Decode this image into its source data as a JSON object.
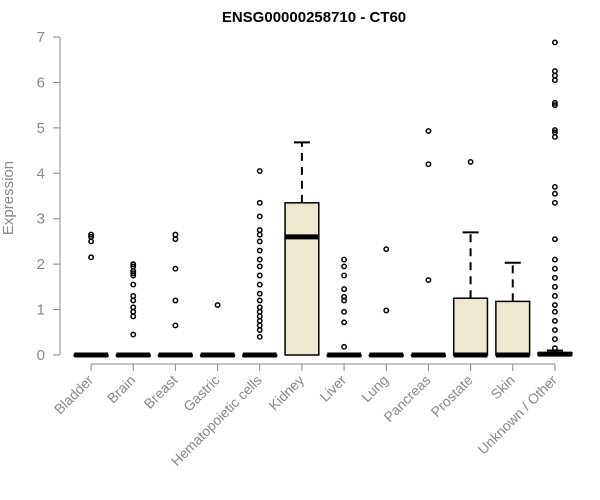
{
  "chart_data": {
    "type": "box",
    "title": "ENSG00000258710 - CT60",
    "xlabel": "",
    "ylabel": "Expression",
    "ylim": [
      0,
      7
    ],
    "yticks": [
      0,
      1,
      2,
      3,
      4,
      5,
      6,
      7
    ],
    "grid": false,
    "colors": {
      "box_fill": "#ede8d0",
      "box_stroke": "#000000",
      "axis": "#888888"
    },
    "categories": [
      "Bladder",
      "Brain",
      "Breast",
      "Gastric",
      "Hematopoietic cells",
      "Kidney",
      "Liver",
      "Lung",
      "Pancreas",
      "Prostate",
      "Skin",
      "Unknown / Other"
    ],
    "boxes": [
      {
        "category": "Bladder",
        "q1": 0,
        "median": 0,
        "q3": 0,
        "whisker_low": 0,
        "whisker_high": 0,
        "outliers": [
          2.15,
          2.5,
          2.6,
          2.65
        ]
      },
      {
        "category": "Brain",
        "q1": 0,
        "median": 0,
        "q3": 0,
        "whisker_low": 0,
        "whisker_high": 0,
        "outliers": [
          0.45,
          0.85,
          0.95,
          1.05,
          1.2,
          1.3,
          1.55,
          1.75,
          1.8,
          1.85,
          1.95,
          2.0
        ]
      },
      {
        "category": "Breast",
        "q1": 0,
        "median": 0,
        "q3": 0,
        "whisker_low": 0,
        "whisker_high": 0,
        "outliers": [
          0.65,
          1.2,
          1.9,
          2.55,
          2.65
        ]
      },
      {
        "category": "Gastric",
        "q1": 0,
        "median": 0,
        "q3": 0,
        "whisker_low": 0,
        "whisker_high": 0,
        "outliers": [
          1.1
        ]
      },
      {
        "category": "Hematopoietic cells",
        "q1": 0,
        "median": 0,
        "q3": 0,
        "whisker_low": 0,
        "whisker_high": 0,
        "outliers": [
          0.4,
          0.55,
          0.65,
          0.75,
          0.85,
          0.95,
          1.05,
          1.2,
          1.35,
          1.55,
          1.75,
          1.95,
          2.1,
          2.3,
          2.5,
          2.65,
          2.75,
          3.05,
          3.35,
          4.05
        ]
      },
      {
        "category": "Kidney",
        "q1": 0,
        "median": 2.6,
        "q3": 3.35,
        "whisker_low": 0,
        "whisker_high": 4.68,
        "outliers": []
      },
      {
        "category": "Liver",
        "q1": 0,
        "median": 0,
        "q3": 0,
        "whisker_low": 0,
        "whisker_high": 0,
        "outliers": [
          0.18,
          0.72,
          0.95,
          1.2,
          1.28,
          1.45,
          1.75,
          1.95,
          2.1
        ]
      },
      {
        "category": "Lung",
        "q1": 0,
        "median": 0,
        "q3": 0,
        "whisker_low": 0,
        "whisker_high": 0,
        "outliers": [
          0.98,
          2.33
        ]
      },
      {
        "category": "Pancreas",
        "q1": 0,
        "median": 0,
        "q3": 0,
        "whisker_low": 0,
        "whisker_high": 0,
        "outliers": [
          1.65,
          4.2,
          4.93
        ]
      },
      {
        "category": "Prostate",
        "q1": 0,
        "median": 0,
        "q3": 1.25,
        "whisker_low": 0,
        "whisker_high": 2.7,
        "outliers": [
          4.25
        ]
      },
      {
        "category": "Skin",
        "q1": 0,
        "median": 0,
        "q3": 1.18,
        "whisker_low": 0,
        "whisker_high": 2.03,
        "outliers": []
      },
      {
        "category": "Unknown / Other",
        "q1": 0,
        "median": 0.02,
        "q3": 0.05,
        "whisker_low": 0,
        "whisker_high": 0.1,
        "outliers": [
          0.15,
          0.35,
          0.55,
          0.75,
          0.95,
          1.1,
          1.3,
          1.5,
          1.7,
          1.9,
          2.1,
          2.55,
          3.35,
          3.55,
          3.7,
          4.8,
          4.9,
          4.95,
          5.5,
          5.55,
          6.05,
          6.15,
          6.25,
          6.88
        ]
      }
    ]
  }
}
